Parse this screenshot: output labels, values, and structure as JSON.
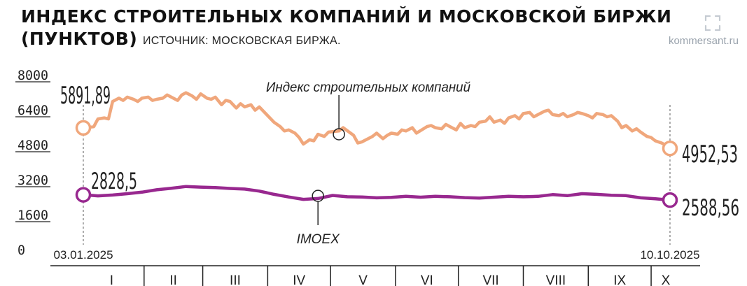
{
  "header": {
    "title_line1": "ИНДЕКС СТРОИТЕЛЬНЫХ КОМПАНИЙ И МОСКОВСКОЙ БИРЖИ",
    "title_line2": "(ПУНКТОВ)",
    "source": "ИСТОЧНИК: МОСКОВСКАЯ БИРЖА.",
    "watermark": "kommersant.ru"
  },
  "colors": {
    "construction": "#f0a77c",
    "imoex": "#98288f",
    "axis": "#222222",
    "muted": "#555555"
  },
  "icons": {
    "watermark_icon": "expand-arrows-icon"
  },
  "chart_data": {
    "type": "line",
    "title": "ИНДЕКС СТРОИТЕЛЬНЫХ КОМПАНИЙ И МОСКОВСКОЙ БИРЖИ",
    "ylim": [
      0,
      8000
    ],
    "yticks": [
      "0",
      "1600",
      "3200",
      "4800",
      "6400",
      "8000"
    ],
    "ytick_values": [
      0,
      1600,
      3200,
      4800,
      6400,
      8000
    ],
    "grid": false,
    "start_date": "03.01.2025",
    "end_date": "10.10.2025",
    "months": [
      "I",
      "II",
      "III",
      "IV",
      "V",
      "VI",
      "VII",
      "VIII",
      "IX",
      "X"
    ],
    "series": [
      {
        "name": "Индекс строительных компаний",
        "start_label": "5891,89",
        "end_label": "4952,53",
        "x": [
          "2025-01-03",
          "2025-01-08",
          "2025-01-10",
          "2025-01-13",
          "2025-01-15",
          "2025-01-17",
          "2025-01-20",
          "2025-01-22",
          "2025-01-24",
          "2025-01-27",
          "2025-01-29",
          "2025-01-31",
          "2025-02-03",
          "2025-02-05",
          "2025-02-07",
          "2025-02-10",
          "2025-02-12",
          "2025-02-14",
          "2025-02-17",
          "2025-02-19",
          "2025-02-21",
          "2025-02-24",
          "2025-02-26",
          "2025-02-28",
          "2025-03-03",
          "2025-03-05",
          "2025-03-07",
          "2025-03-10",
          "2025-03-12",
          "2025-03-14",
          "2025-03-17",
          "2025-03-19",
          "2025-03-21",
          "2025-03-24",
          "2025-03-26",
          "2025-03-28",
          "2025-03-31",
          "2025-04-02",
          "2025-04-04",
          "2025-04-07",
          "2025-04-09",
          "2025-04-11",
          "2025-04-14",
          "2025-04-16",
          "2025-04-18",
          "2025-04-21",
          "2025-04-23",
          "2025-04-25",
          "2025-04-28",
          "2025-04-30",
          "2025-05-05",
          "2025-05-07",
          "2025-05-12",
          "2025-05-14",
          "2025-05-16",
          "2025-05-19",
          "2025-05-21",
          "2025-05-23",
          "2025-05-26",
          "2025-05-28",
          "2025-05-30",
          "2025-06-02",
          "2025-06-04",
          "2025-06-06",
          "2025-06-09",
          "2025-06-11",
          "2025-06-16",
          "2025-06-18",
          "2025-06-20",
          "2025-06-23",
          "2025-06-25",
          "2025-06-27",
          "2025-06-30",
          "2025-07-02",
          "2025-07-04",
          "2025-07-07",
          "2025-07-09",
          "2025-07-11",
          "2025-07-14",
          "2025-07-16",
          "2025-07-18",
          "2025-07-21",
          "2025-07-23",
          "2025-07-25",
          "2025-07-28",
          "2025-07-30",
          "2025-08-01",
          "2025-08-04",
          "2025-08-06",
          "2025-08-08",
          "2025-08-11",
          "2025-08-13",
          "2025-08-15",
          "2025-08-18",
          "2025-08-20",
          "2025-08-22",
          "2025-08-25",
          "2025-08-27",
          "2025-08-29",
          "2025-09-01",
          "2025-09-03",
          "2025-09-05",
          "2025-09-08",
          "2025-09-10",
          "2025-09-12",
          "2025-09-15",
          "2025-09-17",
          "2025-09-19",
          "2025-09-22",
          "2025-09-24",
          "2025-09-26",
          "2025-09-29",
          "2025-10-01",
          "2025-10-03",
          "2025-10-06",
          "2025-10-08",
          "2025-10-10"
        ],
        "values": [
          5892,
          5950,
          6300,
          6350,
          6300,
          7100,
          7250,
          7150,
          7300,
          7200,
          7100,
          7250,
          7300,
          7150,
          7200,
          7250,
          7400,
          7300,
          7150,
          7400,
          7500,
          7350,
          7200,
          7450,
          7250,
          7200,
          7300,
          6950,
          7150,
          7100,
          6800,
          7000,
          6850,
          6950,
          6700,
          6850,
          6550,
          6350,
          6150,
          5950,
          5750,
          5800,
          5650,
          5450,
          5150,
          5350,
          5300,
          5600,
          5500,
          5700,
          5750,
          5900,
          5550,
          5200,
          5250,
          5400,
          5500,
          5650,
          5400,
          5550,
          5650,
          5600,
          5800,
          5750,
          5900,
          5650,
          5950,
          6000,
          5900,
          5850,
          6050,
          5950,
          5800,
          6100,
          5900,
          6000,
          5950,
          6150,
          6200,
          6400,
          6150,
          6250,
          6100,
          6350,
          6450,
          6300,
          6550,
          6600,
          6400,
          6500,
          6650,
          6700,
          6500,
          6450,
          6550,
          6400,
          6500,
          6600,
          6550,
          6450,
          6350,
          6550,
          6500,
          6400,
          6450,
          6200,
          5900,
          6000,
          5750,
          5850,
          5700,
          5500,
          5450,
          5300,
          5200,
          5100,
          4953
        ]
      },
      {
        "name": "IMOEX",
        "start_label": "2828,5",
        "end_label": "2588,56",
        "x": [
          "2025-01-03",
          "2025-01-10",
          "2025-01-17",
          "2025-01-24",
          "2025-01-31",
          "2025-02-07",
          "2025-02-14",
          "2025-02-21",
          "2025-02-28",
          "2025-03-07",
          "2025-03-14",
          "2025-03-21",
          "2025-03-28",
          "2025-04-04",
          "2025-04-11",
          "2025-04-18",
          "2025-04-25",
          "2025-05-02",
          "2025-05-09",
          "2025-05-16",
          "2025-05-23",
          "2025-05-30",
          "2025-06-06",
          "2025-06-13",
          "2025-06-20",
          "2025-06-27",
          "2025-07-04",
          "2025-07-11",
          "2025-07-18",
          "2025-07-25",
          "2025-08-01",
          "2025-08-08",
          "2025-08-15",
          "2025-08-22",
          "2025-08-29",
          "2025-09-05",
          "2025-09-12",
          "2025-09-19",
          "2025-09-26",
          "2025-10-03",
          "2025-10-10"
        ],
        "values": [
          2829,
          2780,
          2820,
          2880,
          2950,
          3060,
          3130,
          3210,
          3180,
          3160,
          3120,
          3090,
          3000,
          2850,
          2730,
          2620,
          2660,
          2800,
          2740,
          2730,
          2690,
          2710,
          2760,
          2720,
          2760,
          2740,
          2700,
          2680,
          2720,
          2760,
          2740,
          2760,
          2840,
          2790,
          2880,
          2850,
          2810,
          2790,
          2690,
          2650,
          2589
        ]
      }
    ],
    "annotations": [
      "Индекс строительных компаний",
      "IMOEX"
    ]
  }
}
